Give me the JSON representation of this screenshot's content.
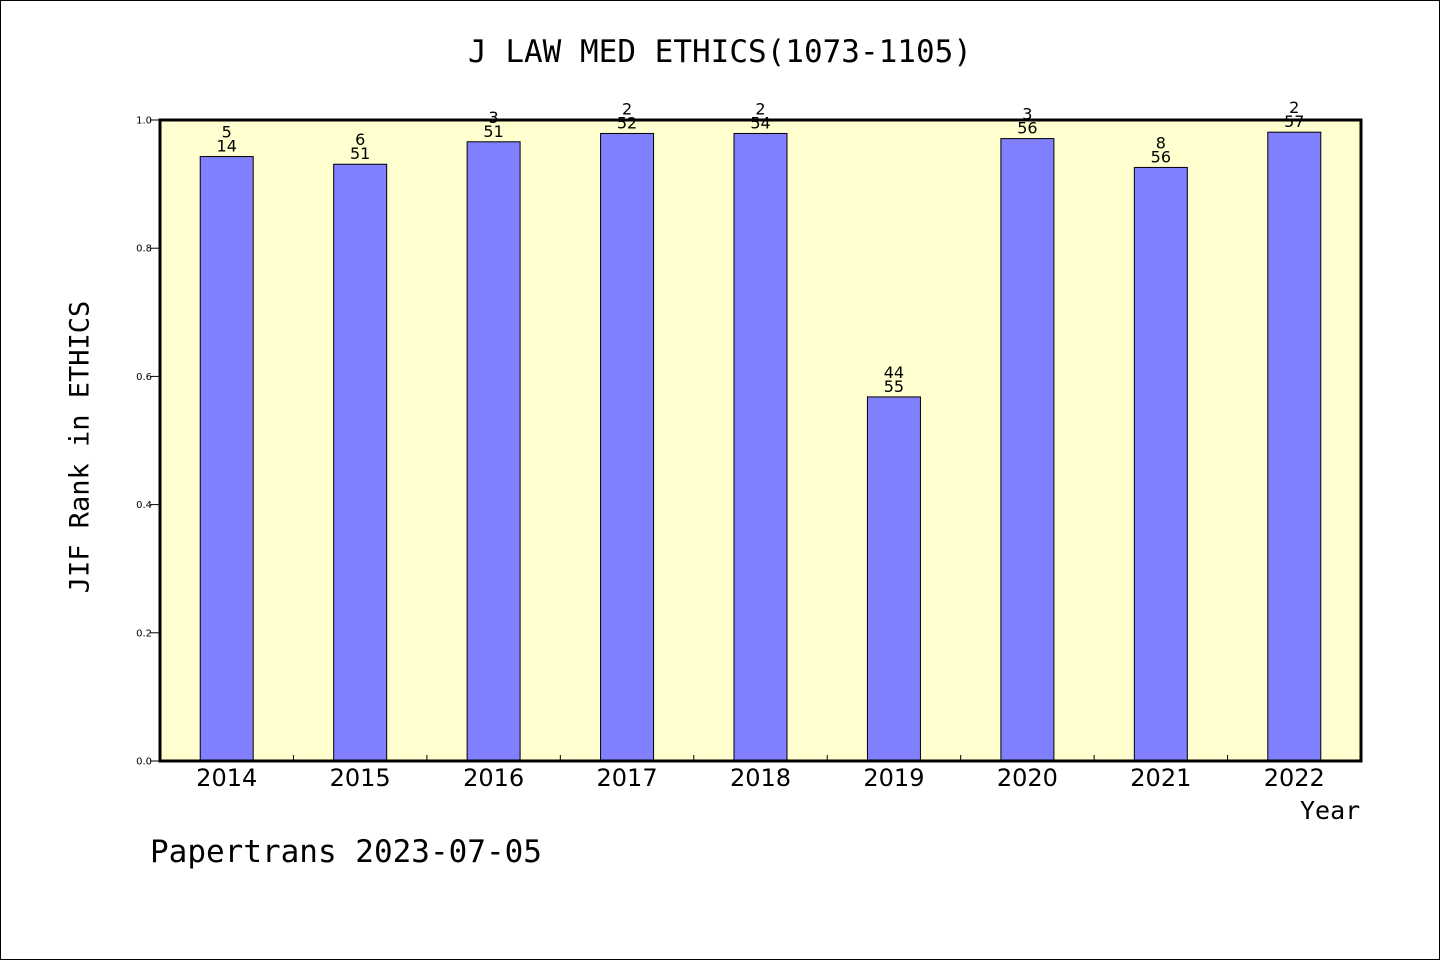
{
  "chart_data": {
    "type": "bar",
    "title": "J LAW MED ETHICS(1073-1105)",
    "xlabel": "Year",
    "ylabel": "JIF Rank in ETHICS",
    "ylim": [
      0,
      1.0
    ],
    "yticks": [
      "0.0",
      "0.2",
      "0.4",
      "0.6",
      "0.8",
      "1.0"
    ],
    "categories": [
      "2014",
      "2015",
      "2016",
      "2017",
      "2018",
      "2019",
      "2020",
      "2021",
      "2022"
    ],
    "values": [
      0.943,
      0.931,
      0.966,
      0.979,
      0.979,
      0.568,
      0.971,
      0.926,
      0.981
    ],
    "rank_labels": [
      "5",
      "6",
      "3",
      "2",
      "2",
      "44",
      "3",
      "8",
      "2"
    ],
    "total_labels": [
      "14",
      "51",
      "51",
      "52",
      "54",
      "55",
      "56",
      "56",
      "57"
    ],
    "grid": false,
    "colors": {
      "bar": "#8080ff",
      "plot_background": "#ffffd0",
      "border": "#000000"
    }
  },
  "footer": "Papertrans 2023-07-05"
}
